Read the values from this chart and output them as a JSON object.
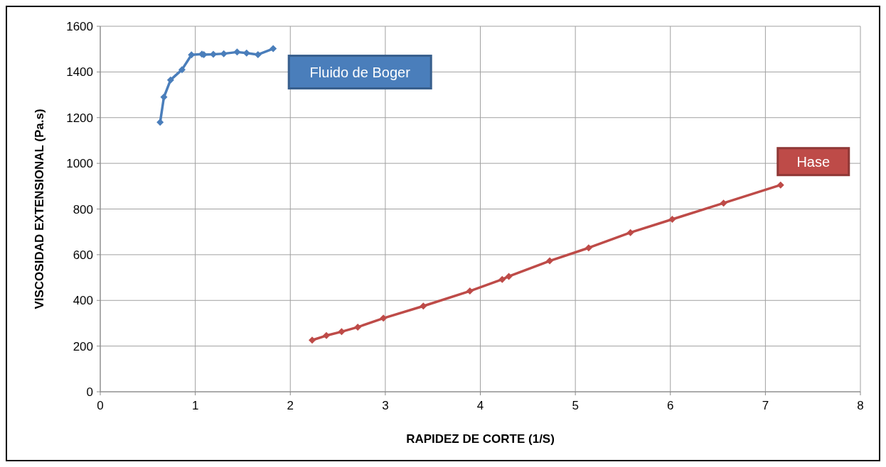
{
  "chart_data": {
    "type": "line",
    "xlabel": "RAPIDEZ DE CORTE (1/S)",
    "ylabel": "VISCOSIDAD EXTENSIONAL (Pa.s)",
    "xlim": [
      0,
      8
    ],
    "xticks": [
      0,
      1,
      2,
      3,
      4,
      5,
      6,
      7,
      8
    ],
    "ylim": [
      0,
      1600
    ],
    "yticks": [
      0,
      200,
      400,
      600,
      800,
      1000,
      1200,
      1400,
      1600
    ],
    "grid": true,
    "marker": "diamond",
    "line_style": "solid",
    "series": [
      {
        "name": "Fluido de Boger",
        "color": "#4a7ebb",
        "x": [
          0.63,
          0.67,
          0.74,
          0.86,
          0.96,
          1.07,
          1.09,
          1.19,
          1.3,
          1.44,
          1.54,
          1.66,
          1.82
        ],
        "values": [
          1180,
          1290,
          1365,
          1410,
          1475,
          1478,
          1476,
          1477,
          1480,
          1487,
          1483,
          1476,
          1502
        ]
      },
      {
        "name": "Hase",
        "color": "#be4b48",
        "x": [
          2.23,
          2.38,
          2.54,
          2.71,
          2.98,
          3.4,
          3.89,
          4.23,
          4.3,
          4.73,
          5.14,
          5.58,
          6.02,
          6.56,
          7.16
        ],
        "values": [
          226,
          246,
          263,
          283,
          322,
          375,
          441,
          492,
          505,
          573,
          630,
          697,
          755,
          826,
          905
        ]
      }
    ]
  }
}
